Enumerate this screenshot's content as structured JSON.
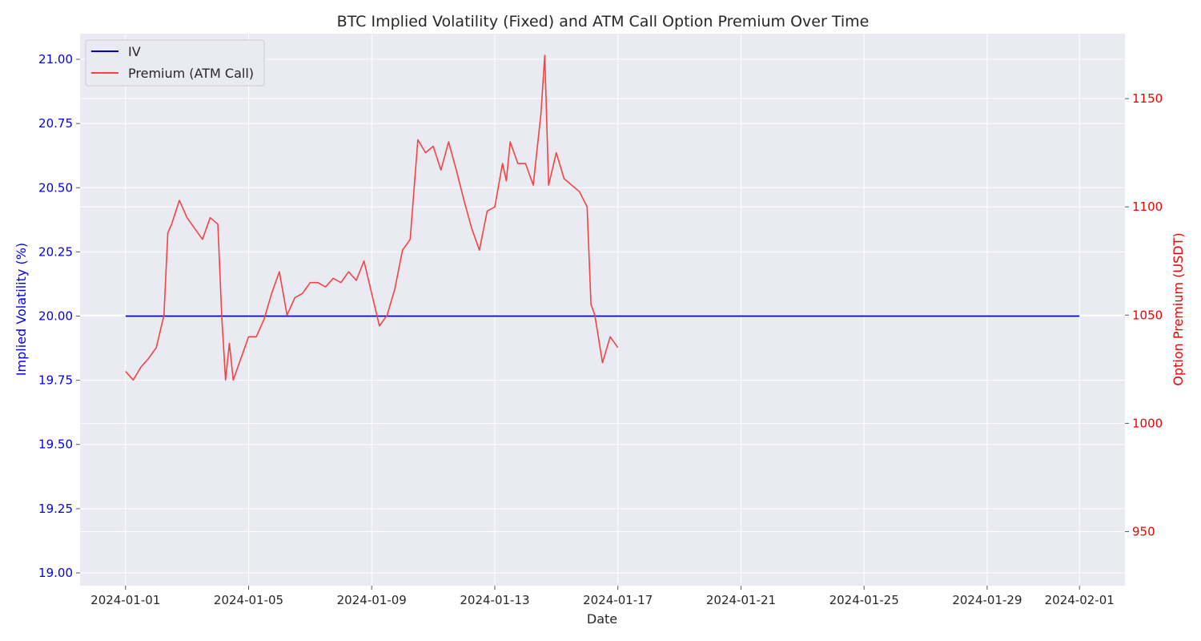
{
  "chart_data": {
    "type": "line",
    "title": "BTC Implied Volatility (Fixed) and ATM Call Option Premium Over Time",
    "xlabel": "Date",
    "ylabel_left": "Implied Volatility (%)",
    "ylabel_right": "Option Premium (USDT)",
    "x_range": [
      "2024-01-01",
      "2024-02-01"
    ],
    "x_ticks": [
      "2024-01-01",
      "2024-01-05",
      "2024-01-09",
      "2024-01-13",
      "2024-01-17",
      "2024-01-21",
      "2024-01-25",
      "2024-01-29",
      "2024-02-01"
    ],
    "ylim_left": [
      18.95,
      21.1
    ],
    "ylim_right": [
      925,
      1180
    ],
    "y_ticks_left": [
      "19.00",
      "19.25",
      "19.50",
      "19.75",
      "20.00",
      "20.25",
      "20.50",
      "20.75",
      "21.00"
    ],
    "y_ticks_right": [
      "950",
      "1000",
      "1050",
      "1100",
      "1150"
    ],
    "grid": true,
    "legend_position": "top-left",
    "colors": {
      "iv": "#0000cc",
      "premium": "#f04444",
      "left_axis": "#0000ee",
      "right_axis": "#ee0000",
      "background": "#eaeaf2",
      "grid": "#ffffff"
    },
    "series": [
      {
        "name": "IV",
        "axis": "left",
        "points": [
          [
            "2024-01-01",
            20.0
          ],
          [
            "2024-02-01",
            20.0
          ]
        ]
      },
      {
        "name": "Premium (ATM Call)",
        "axis": "right",
        "points": [
          [
            "2024-01-01",
            1024
          ],
          [
            "2024-01-01 06:00",
            1020
          ],
          [
            "2024-01-01 12:00",
            1026
          ],
          [
            "2024-01-01 18:00",
            1030
          ],
          [
            "2024-01-02 00:00",
            1035
          ],
          [
            "2024-01-02 06:00",
            1050
          ],
          [
            "2024-01-02 09:00",
            1088
          ],
          [
            "2024-01-02 12:00",
            1092
          ],
          [
            "2024-01-02 18:00",
            1103
          ],
          [
            "2024-01-03 00:00",
            1095
          ],
          [
            "2024-01-03 06:00",
            1090
          ],
          [
            "2024-01-03 12:00",
            1085
          ],
          [
            "2024-01-03 18:00",
            1095
          ],
          [
            "2024-01-04 00:00",
            1092
          ],
          [
            "2024-01-04 03:00",
            1050
          ],
          [
            "2024-01-04 06:00",
            1020
          ],
          [
            "2024-01-04 09:00",
            1037
          ],
          [
            "2024-01-04 12:00",
            1020
          ],
          [
            "2024-01-04 18:00",
            1030
          ],
          [
            "2024-01-05 00:00",
            1040
          ],
          [
            "2024-01-05 06:00",
            1040
          ],
          [
            "2024-01-05 12:00",
            1048
          ],
          [
            "2024-01-05 18:00",
            1060
          ],
          [
            "2024-01-06 00:00",
            1070
          ],
          [
            "2024-01-06 06:00",
            1050
          ],
          [
            "2024-01-06 12:00",
            1058
          ],
          [
            "2024-01-06 18:00",
            1060
          ],
          [
            "2024-01-07 00:00",
            1065
          ],
          [
            "2024-01-07 06:00",
            1065
          ],
          [
            "2024-01-07 12:00",
            1063
          ],
          [
            "2024-01-07 18:00",
            1067
          ],
          [
            "2024-01-08 00:00",
            1065
          ],
          [
            "2024-01-08 06:00",
            1070
          ],
          [
            "2024-01-08 12:00",
            1066
          ],
          [
            "2024-01-08 18:00",
            1075
          ],
          [
            "2024-01-09 00:00",
            1060
          ],
          [
            "2024-01-09 06:00",
            1045
          ],
          [
            "2024-01-09 12:00",
            1050
          ],
          [
            "2024-01-09 18:00",
            1062
          ],
          [
            "2024-01-10 00:00",
            1080
          ],
          [
            "2024-01-10 06:00",
            1085
          ],
          [
            "2024-01-10 12:00",
            1131
          ],
          [
            "2024-01-10 18:00",
            1125
          ],
          [
            "2024-01-11 00:00",
            1128
          ],
          [
            "2024-01-11 06:00",
            1117
          ],
          [
            "2024-01-11 12:00",
            1130
          ],
          [
            "2024-01-11 18:00",
            1117
          ],
          [
            "2024-01-12 00:00",
            1103
          ],
          [
            "2024-01-12 06:00",
            1090
          ],
          [
            "2024-01-12 12:00",
            1080
          ],
          [
            "2024-01-12 18:00",
            1098
          ],
          [
            "2024-01-13 00:00",
            1100
          ],
          [
            "2024-01-13 06:00",
            1120
          ],
          [
            "2024-01-13 09:00",
            1112
          ],
          [
            "2024-01-13 12:00",
            1130
          ],
          [
            "2024-01-13 18:00",
            1120
          ],
          [
            "2024-01-14 00:00",
            1120
          ],
          [
            "2024-01-14 06:00",
            1110
          ],
          [
            "2024-01-14 12:00",
            1143
          ],
          [
            "2024-01-14 15:00",
            1170
          ],
          [
            "2024-01-14 18:00",
            1110
          ],
          [
            "2024-01-15 00:00",
            1125
          ],
          [
            "2024-01-15 06:00",
            1113
          ],
          [
            "2024-01-15 12:00",
            1110
          ],
          [
            "2024-01-15 18:00",
            1107
          ],
          [
            "2024-01-16 00:00",
            1100
          ],
          [
            "2024-01-16 03:00",
            1055
          ],
          [
            "2024-01-16 06:00",
            1050
          ],
          [
            "2024-01-16 12:00",
            1028
          ],
          [
            "2024-01-16 18:00",
            1040
          ],
          [
            "2024-01-17 00:00",
            1035
          ]
        ]
      }
    ]
  }
}
